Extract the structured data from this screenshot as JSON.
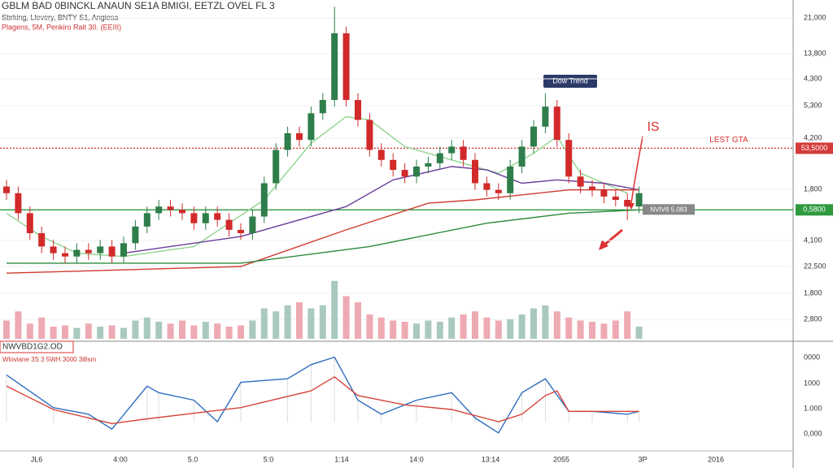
{
  "chart_data": {
    "type": "candlestick",
    "title": "GBLM BAD 0BINCKL ANAUN SE1A BMIGI, EETZL OVEL FL 3",
    "subtitle": [
      "Sbrking, Llevery, BNTY S1, Angiesa",
      "Plagens, 5M, Penkiro Rait 30. (EEIII)"
    ],
    "ylim": [
      0,
      100
    ],
    "open": [
      44,
      42,
      36,
      30,
      26,
      24,
      23,
      25,
      24,
      26,
      23,
      27,
      32,
      36,
      38,
      37,
      36,
      33,
      36,
      34,
      31,
      30,
      35,
      45,
      55,
      60,
      58,
      66,
      70,
      90,
      70,
      64,
      55,
      52,
      49,
      47,
      50,
      51,
      54,
      56,
      52,
      45,
      43,
      42,
      50,
      56,
      62,
      68,
      58,
      47,
      44,
      43,
      41,
      40,
      38
    ],
    "high": [
      46,
      44,
      38,
      32,
      28,
      26,
      27,
      27,
      28,
      28,
      29,
      34,
      38,
      40,
      40,
      39,
      38,
      38,
      38,
      36,
      33,
      37,
      47,
      57,
      62,
      62,
      68,
      72,
      98,
      92,
      72,
      66,
      57,
      54,
      51,
      52,
      53,
      56,
      58,
      58,
      54,
      47,
      45,
      52,
      58,
      64,
      72,
      70,
      60,
      49,
      46,
      45,
      43,
      42,
      44
    ],
    "low": [
      40,
      34,
      28,
      24,
      22,
      21,
      21,
      22,
      22,
      21,
      21,
      25,
      30,
      34,
      35,
      34,
      31,
      31,
      32,
      29,
      28,
      28,
      33,
      43,
      53,
      56,
      56,
      64,
      68,
      68,
      62,
      53,
      50,
      47,
      45,
      45,
      48,
      49,
      52,
      50,
      43,
      41,
      40,
      40,
      48,
      54,
      60,
      56,
      45,
      42,
      41,
      39,
      38,
      34,
      36
    ],
    "close": [
      42,
      36,
      30,
      26,
      24,
      23,
      25,
      24,
      26,
      23,
      27,
      32,
      36,
      38,
      37,
      36,
      33,
      36,
      34,
      31,
      30,
      35,
      45,
      55,
      60,
      58,
      66,
      70,
      90,
      70,
      64,
      55,
      52,
      49,
      47,
      50,
      51,
      54,
      56,
      52,
      45,
      43,
      42,
      50,
      56,
      62,
      68,
      58,
      47,
      44,
      43,
      41,
      40,
      38,
      42
    ],
    "price_labels": [
      "21,000",
      "13,800",
      "4,300",
      "5,300",
      "4,200",
      "1,800",
      "4,100",
      "22,500",
      "1,800",
      "2,800"
    ],
    "x_labels": [
      "JL6",
      "4:00",
      "5.0",
      "5:0",
      "1:14",
      "14:0",
      "13:14",
      "2055",
      "3P",
      "2016"
    ],
    "moving_averages": [
      {
        "color": "#8fd48f",
        "x": [
          0,
          3,
          6,
          10,
          16,
          22,
          26,
          29,
          31,
          34,
          38,
          42,
          45,
          47,
          49,
          53
        ],
        "values": [
          36,
          29,
          24,
          23,
          26,
          40,
          57,
          65,
          64,
          56,
          52,
          48,
          54,
          59,
          48,
          42
        ]
      },
      {
        "color": "#6a3d9a",
        "x": [
          10,
          20,
          29,
          33,
          38,
          41,
          44,
          47,
          51,
          54
        ],
        "values": [
          24,
          29,
          38,
          46,
          50,
          49,
          45,
          46,
          45,
          43
        ]
      },
      {
        "color": "#d03a2f",
        "x": [
          0,
          20,
          29,
          36,
          40,
          48,
          54
        ],
        "values": [
          18,
          20,
          31,
          39,
          40,
          43,
          43
        ]
      },
      {
        "color": "#2e8b3e",
        "x": [
          0,
          20,
          31,
          41,
          48,
          54
        ],
        "values": [
          21,
          21,
          26,
          33,
          36,
          37
        ]
      }
    ],
    "levels": [
      {
        "label": "LEST GTA",
        "value": 55.5,
        "color": "#d33a3a",
        "tag": "53,5000"
      },
      {
        "label": "NVIV6 5.083",
        "value": 37,
        "color": "#2e9a3e",
        "tag": "0,5800"
      }
    ],
    "annotations": [
      "Dow Trend",
      "IS"
    ],
    "volume": {
      "ylim": [
        0,
        100
      ],
      "values": [
        30,
        45,
        25,
        35,
        20,
        22,
        18,
        25,
        20,
        22,
        18,
        30,
        35,
        28,
        25,
        30,
        22,
        28,
        25,
        20,
        22,
        30,
        50,
        45,
        55,
        60,
        50,
        55,
        95,
        70,
        60,
        40,
        35,
        30,
        28,
        25,
        30,
        28,
        35,
        40,
        45,
        35,
        30,
        32,
        40,
        50,
        55,
        45,
        35,
        30,
        28,
        25,
        30,
        45,
        20
      ]
    },
    "oscillator": {
      "title": "NWVBD1G2.OD",
      "subtitle": "Wloviane 3S 3 5WH 3000 3l8sm",
      "ylim": [
        0,
        100
      ],
      "labels": [
        "0000",
        "1000",
        "1.000",
        "0,000"
      ],
      "series": [
        {
          "color": "#2f6fc0",
          "x": [
            0,
            4,
            7,
            9,
            12,
            13,
            16,
            18,
            20,
            24,
            26,
            28,
            30,
            32,
            35,
            38,
            40,
            42,
            44,
            46,
            48,
            50,
            53,
            54
          ],
          "values": [
            77,
            42,
            35,
            19,
            65,
            58,
            50,
            27,
            69,
            73,
            88,
            96,
            50,
            35,
            50,
            58,
            31,
            15,
            58,
            73,
            38,
            38,
            35,
            38
          ]
        },
        {
          "color": "#d8453a",
          "x": [
            0,
            4,
            9,
            12,
            20,
            26,
            28,
            30,
            34,
            38,
            42,
            44,
            46,
            47,
            48,
            54
          ],
          "values": [
            65,
            40,
            25,
            30,
            42,
            60,
            75,
            55,
            45,
            40,
            27,
            35,
            55,
            60,
            38,
            38
          ]
        }
      ]
    }
  }
}
